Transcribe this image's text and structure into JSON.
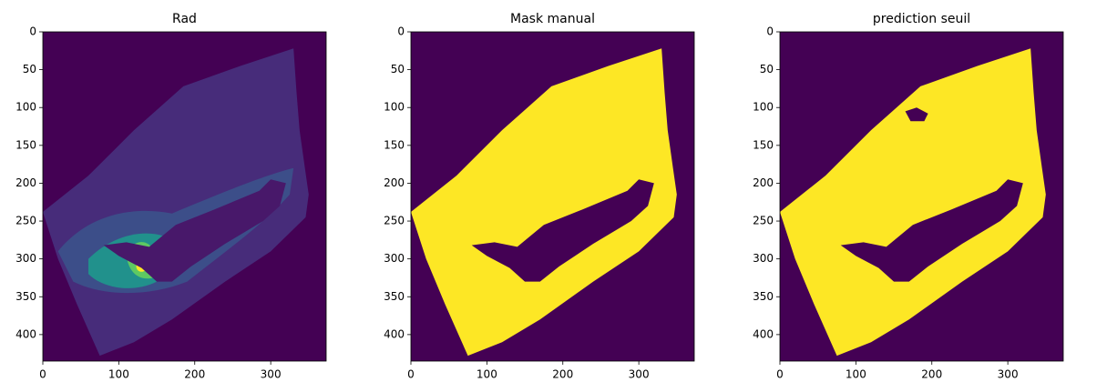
{
  "chart_data": [
    {
      "type": "image",
      "title": "Rad",
      "xlim": [
        0,
        373
      ],
      "ylim": [
        435,
        0
      ],
      "xticks": [
        0,
        100,
        200,
        300
      ],
      "yticks": [
        0,
        50,
        100,
        150,
        200,
        250,
        300,
        350,
        400
      ]
    },
    {
      "type": "image",
      "title": "Mask manual",
      "xlim": [
        0,
        373
      ],
      "ylim": [
        435,
        0
      ],
      "xticks": [
        0,
        100,
        200,
        300
      ],
      "yticks": [
        0,
        50,
        100,
        150,
        200,
        250,
        300,
        350,
        400
      ]
    },
    {
      "type": "image",
      "title": "prediction seuil",
      "xlim": [
        0,
        373
      ],
      "ylim": [
        435,
        0
      ],
      "xticks": [
        0,
        100,
        200,
        300
      ],
      "yticks": [
        0,
        50,
        100,
        150,
        200,
        250,
        300,
        350,
        400
      ]
    }
  ]
}
